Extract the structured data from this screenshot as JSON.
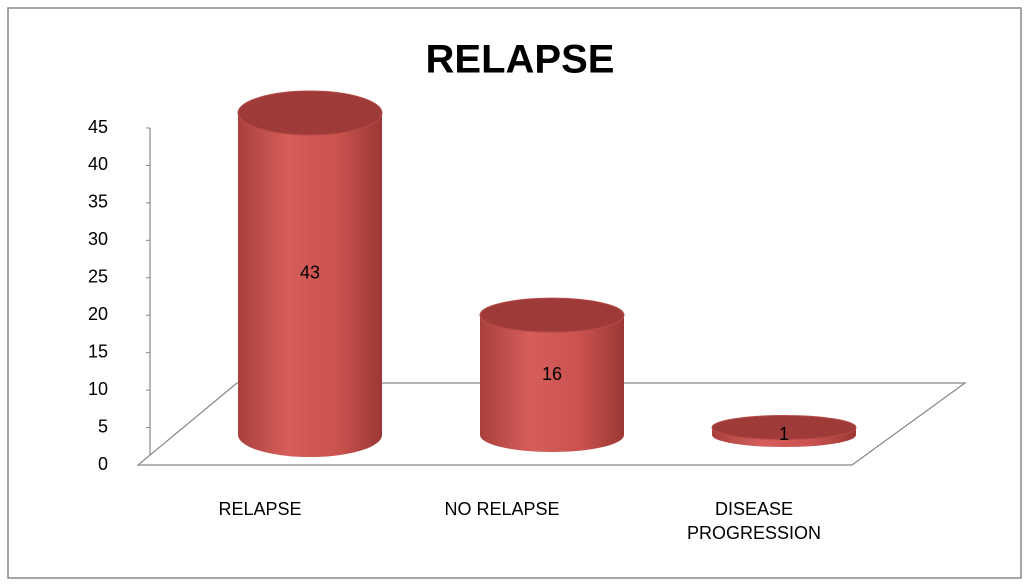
{
  "chart_data": {
    "type": "bar",
    "title": "RELAPSE",
    "categories": [
      "RELAPSE",
      "NO RELAPSE",
      "DISEASE PROGRESSION"
    ],
    "values": [
      43,
      16,
      1
    ],
    "color": "#c0504d",
    "ylim": [
      0,
      45
    ],
    "yticks": [
      0,
      5,
      10,
      15,
      20,
      25,
      30,
      35,
      40,
      45
    ]
  }
}
